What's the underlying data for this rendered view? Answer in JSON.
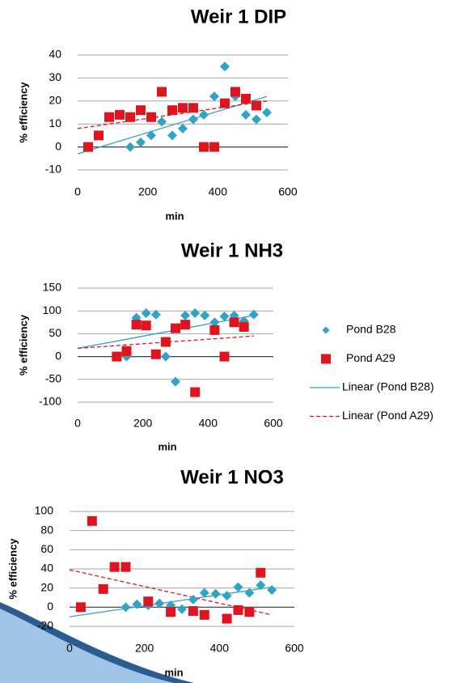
{
  "chart_data": [
    {
      "type": "scatter",
      "title": "Weir 1 DIP",
      "xlabel": "min",
      "ylabel": "% efficiency",
      "xlim": [
        0,
        600
      ],
      "xticks": [
        0,
        200,
        400,
        600
      ],
      "ylim": [
        -10,
        40
      ],
      "yticks": [
        -10,
        0,
        10,
        20,
        30,
        40
      ],
      "grid": true,
      "series": [
        {
          "marker": "diamond",
          "color": "#31a3c4",
          "x": [
            150,
            180,
            210,
            240,
            270,
            300,
            330,
            360,
            390,
            420,
            450,
            480,
            510,
            540
          ],
          "values": [
            0,
            2,
            5,
            11,
            5,
            8,
            12,
            14,
            22,
            35,
            22,
            14,
            12,
            15
          ]
        },
        {
          "marker": "square",
          "color": "#e0141e",
          "x": [
            30,
            60,
            90,
            120,
            150,
            180,
            210,
            240,
            270,
            300,
            330,
            360,
            390,
            420,
            450,
            480,
            510
          ],
          "values": [
            0,
            5,
            13,
            14,
            13,
            16,
            13,
            24,
            16,
            17,
            17,
            0,
            0,
            19,
            24,
            21,
            18
          ]
        },
        {
          "type": "line",
          "dash": false,
          "color": "#31a3c4",
          "x": [
            0,
            540
          ],
          "values": [
            -3,
            22
          ]
        },
        {
          "type": "line",
          "dash": true,
          "color": "#e0141e",
          "x": [
            0,
            540
          ],
          "values": [
            8,
            20
          ]
        }
      ]
    },
    {
      "type": "scatter",
      "title": "Weir 1 NH3",
      "xlabel": "min",
      "ylabel": "% efficiency",
      "xlim": [
        0,
        600
      ],
      "xticks": [
        0,
        200,
        400,
        600
      ],
      "ylim": [
        -100,
        150
      ],
      "yticks": [
        -100,
        -50,
        0,
        50,
        100,
        150
      ],
      "grid": true,
      "legend": "right",
      "series": [
        {
          "name": "Pond B28",
          "marker": "diamond",
          "color": "#31a3c4",
          "x": [
            150,
            180,
            210,
            240,
            270,
            300,
            330,
            360,
            390,
            420,
            450,
            480,
            510,
            540
          ],
          "values": [
            0,
            85,
            95,
            92,
            0,
            -55,
            90,
            95,
            90,
            75,
            88,
            90,
            78,
            92
          ]
        },
        {
          "name": "Pond A29",
          "marker": "square",
          "color": "#e0141e",
          "x": [
            120,
            150,
            180,
            210,
            240,
            270,
            300,
            330,
            360,
            420,
            450,
            480,
            510
          ],
          "values": [
            0,
            12,
            70,
            68,
            5,
            32,
            62,
            70,
            -78,
            58,
            0,
            75,
            65
          ]
        },
        {
          "name": "Linear (Pond B28)",
          "type": "line",
          "dash": false,
          "color": "#31a3c4",
          "x": [
            0,
            540
          ],
          "values": [
            18,
            90
          ]
        },
        {
          "name": "Linear (Pond A29)",
          "type": "line",
          "dash": true,
          "color": "#e0141e",
          "x": [
            0,
            540
          ],
          "values": [
            18,
            45
          ]
        }
      ]
    },
    {
      "type": "scatter",
      "title": "Weir 1 NO3",
      "xlabel": "min",
      "ylabel": "% efficiency",
      "xlim": [
        0,
        600
      ],
      "xticks": [
        0,
        200,
        400,
        600
      ],
      "ylim": [
        -20,
        100
      ],
      "yticks": [
        -20,
        0,
        20,
        40,
        60,
        80,
        100
      ],
      "grid": true,
      "series": [
        {
          "marker": "diamond",
          "color": "#31a3c4",
          "x": [
            150,
            180,
            210,
            240,
            270,
            300,
            330,
            360,
            390,
            420,
            450,
            480,
            510,
            540
          ],
          "values": [
            0,
            3,
            2,
            4,
            2,
            -2,
            8,
            15,
            14,
            12,
            21,
            15,
            23,
            18
          ]
        },
        {
          "marker": "square",
          "color": "#e0141e",
          "x": [
            30,
            60,
            90,
            120,
            150,
            210,
            270,
            330,
            360,
            420,
            450,
            480,
            510
          ],
          "values": [
            0,
            90,
            19,
            42,
            42,
            6,
            -5,
            -4,
            -8,
            -12,
            -3,
            -5,
            36
          ]
        },
        {
          "type": "line",
          "dash": false,
          "color": "#31a3c4",
          "x": [
            0,
            540
          ],
          "values": [
            -10,
            21
          ]
        },
        {
          "type": "line",
          "dash": true,
          "color": "#e0141e",
          "x": [
            0,
            540
          ],
          "values": [
            39,
            -8
          ]
        }
      ]
    }
  ]
}
